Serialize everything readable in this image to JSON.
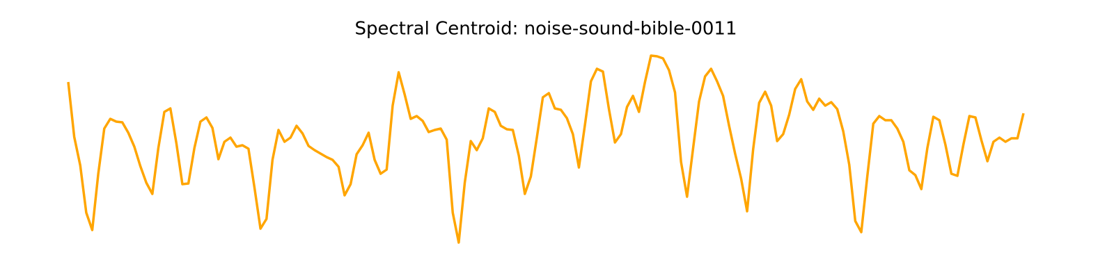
{
  "chart_data": {
    "type": "line",
    "title": "Spectral Centroid: noise-sound-bible-0011",
    "color": "#ffa500",
    "values": [
      282,
      203,
      162,
      94,
      69,
      150,
      215,
      229,
      225,
      224,
      209,
      189,
      161,
      137,
      121,
      187,
      239,
      244,
      194,
      135,
      136,
      187,
      225,
      231,
      216,
      171,
      196,
      202,
      189,
      191,
      186,
      130,
      71,
      85,
      170,
      213,
      196,
      202,
      219,
      208,
      190,
      184,
      179,
      174,
      170,
      160,
      119,
      135,
      178,
      191,
      209,
      170,
      150,
      156,
      248,
      296,
      264,
      229,
      233,
      226,
      210,
      213,
      215,
      199,
      94,
      51,
      137,
      197,
      184,
      201,
      244,
      239,
      219,
      214,
      213,
      176,
      121,
      146,
      202,
      260,
      266,
      244,
      242,
      230,
      207,
      159,
      220,
      283,
      301,
      297,
      243,
      195,
      207,
      246,
      262,
      239,
      282,
      320,
      319,
      316,
      299,
      267,
      167,
      117,
      186,
      254,
      290,
      301,
      283,
      262,
      219,
      179,
      143,
      96,
      185,
      252,
      268,
      248,
      197,
      207,
      235,
      272,
      286,
      254,
      242,
      258,
      248,
      253,
      243,
      211,
      163,
      82,
      66,
      146,
      222,
      233,
      227,
      227,
      215,
      196,
      155,
      148,
      128,
      187,
      232,
      227,
      192,
      150,
      147,
      192,
      233,
      231,
      198,
      168,
      196,
      202,
      196,
      201,
      201,
      237
    ]
  }
}
